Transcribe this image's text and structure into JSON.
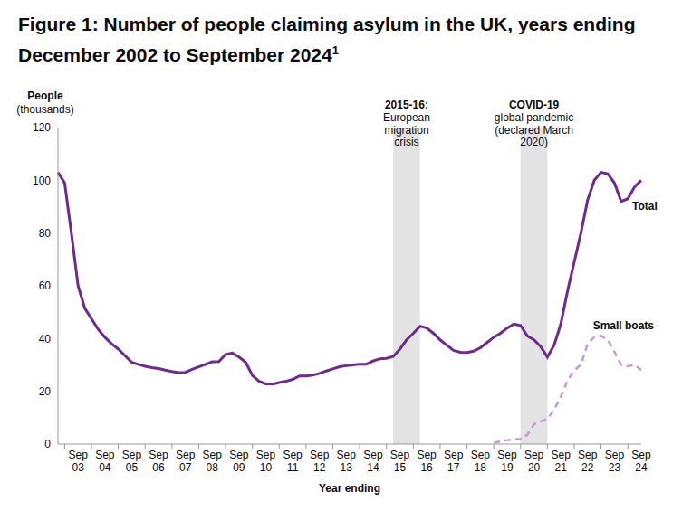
{
  "chart_data": {
    "type": "line",
    "title": "Figure 1: Number of people claiming asylum in the UK, years ending December 2002 to September 2024",
    "title_footnote": "1",
    "y_label": [
      "People",
      "(thousands)"
    ],
    "x_label": "Year ending",
    "categories": [
      null,
      null,
      null,
      "Sep 03",
      null,
      null,
      null,
      "Sep 04",
      null,
      null,
      null,
      "Sep 05",
      null,
      null,
      null,
      "Sep 06",
      null,
      null,
      null,
      "Sep 07",
      null,
      null,
      null,
      "Sep 08",
      null,
      null,
      null,
      "Sep 09",
      null,
      null,
      null,
      "Sep 10",
      null,
      null,
      null,
      "Sep 11",
      null,
      null,
      null,
      "Sep 12",
      null,
      null,
      null,
      "Sep 13",
      null,
      null,
      null,
      "Sep 14",
      null,
      null,
      null,
      "Sep 15",
      null,
      null,
      null,
      "Sep 16",
      null,
      null,
      null,
      "Sep 17",
      null,
      null,
      null,
      "Sep 18",
      null,
      null,
      null,
      "Sep 19",
      null,
      null,
      null,
      "Sep 20",
      null,
      null,
      null,
      "Sep 21",
      null,
      null,
      null,
      "Sep 22",
      null,
      null,
      null,
      "Sep 23",
      null,
      null,
      null,
      "Sep 24"
    ],
    "series": [
      {
        "name": "Total",
        "color": "#6e2a8d",
        "line_style": "solid",
        "values": [
          103,
          99,
          80,
          60,
          51.5,
          47.5,
          43.5,
          40.5,
          38,
          36,
          33.5,
          31,
          30.2,
          29.5,
          29,
          28.6,
          28,
          27.5,
          27.1,
          27.2,
          28.3,
          29.3,
          30.2,
          31.2,
          31.3,
          34,
          34.5,
          33,
          31,
          26,
          23.8,
          22.8,
          22.7,
          23.3,
          23.8,
          24.5,
          25.8,
          25.8,
          26.1,
          26.8,
          27.7,
          28.5,
          29.3,
          29.7,
          30,
          30.3,
          30.3,
          31.5,
          32.3,
          32.5,
          33.2,
          36,
          39.5,
          42,
          44.7,
          44,
          42,
          39.5,
          37.5,
          35.5,
          34.8,
          34.7,
          35.2,
          36.5,
          38.5,
          40.5,
          42,
          44,
          45.5,
          45,
          41,
          39.5,
          37,
          33,
          37.5,
          45.5,
          58,
          69,
          80,
          92.5,
          100,
          103,
          102.5,
          99,
          92,
          93,
          97.5,
          100
        ]
      },
      {
        "name": "Small boats",
        "color": "#c59ad6",
        "line_style": "dashed",
        "values": [
          null,
          null,
          null,
          null,
          null,
          null,
          null,
          null,
          null,
          null,
          null,
          null,
          null,
          null,
          null,
          null,
          null,
          null,
          null,
          null,
          null,
          null,
          null,
          null,
          null,
          null,
          null,
          null,
          null,
          null,
          null,
          null,
          null,
          null,
          null,
          null,
          null,
          null,
          null,
          null,
          null,
          null,
          null,
          null,
          null,
          null,
          null,
          null,
          null,
          null,
          null,
          null,
          null,
          null,
          null,
          null,
          null,
          null,
          null,
          null,
          null,
          null,
          null,
          null,
          null,
          0.5,
          1,
          1.5,
          1.8,
          2,
          3.5,
          7.5,
          8.5,
          9.5,
          13,
          18,
          24,
          28,
          30,
          38,
          40.5,
          41,
          39.5,
          35,
          30,
          29.5,
          30,
          28
        ]
      }
    ],
    "bands": [
      {
        "title": "2015-16:",
        "lines": [
          "European",
          "migration",
          "crisis"
        ],
        "start": 50,
        "end": 54,
        "color": "#e3e3e3"
      },
      {
        "title": "COVID-19",
        "lines": [
          "global pandemic",
          "(declared March",
          "2020)"
        ],
        "start": 69,
        "end": 73,
        "color": "#e3e3e3"
      }
    ],
    "ylim": [
      0,
      120
    ],
    "yticks": [
      0,
      20,
      40,
      60,
      80,
      100,
      120
    ],
    "grid": false
  }
}
